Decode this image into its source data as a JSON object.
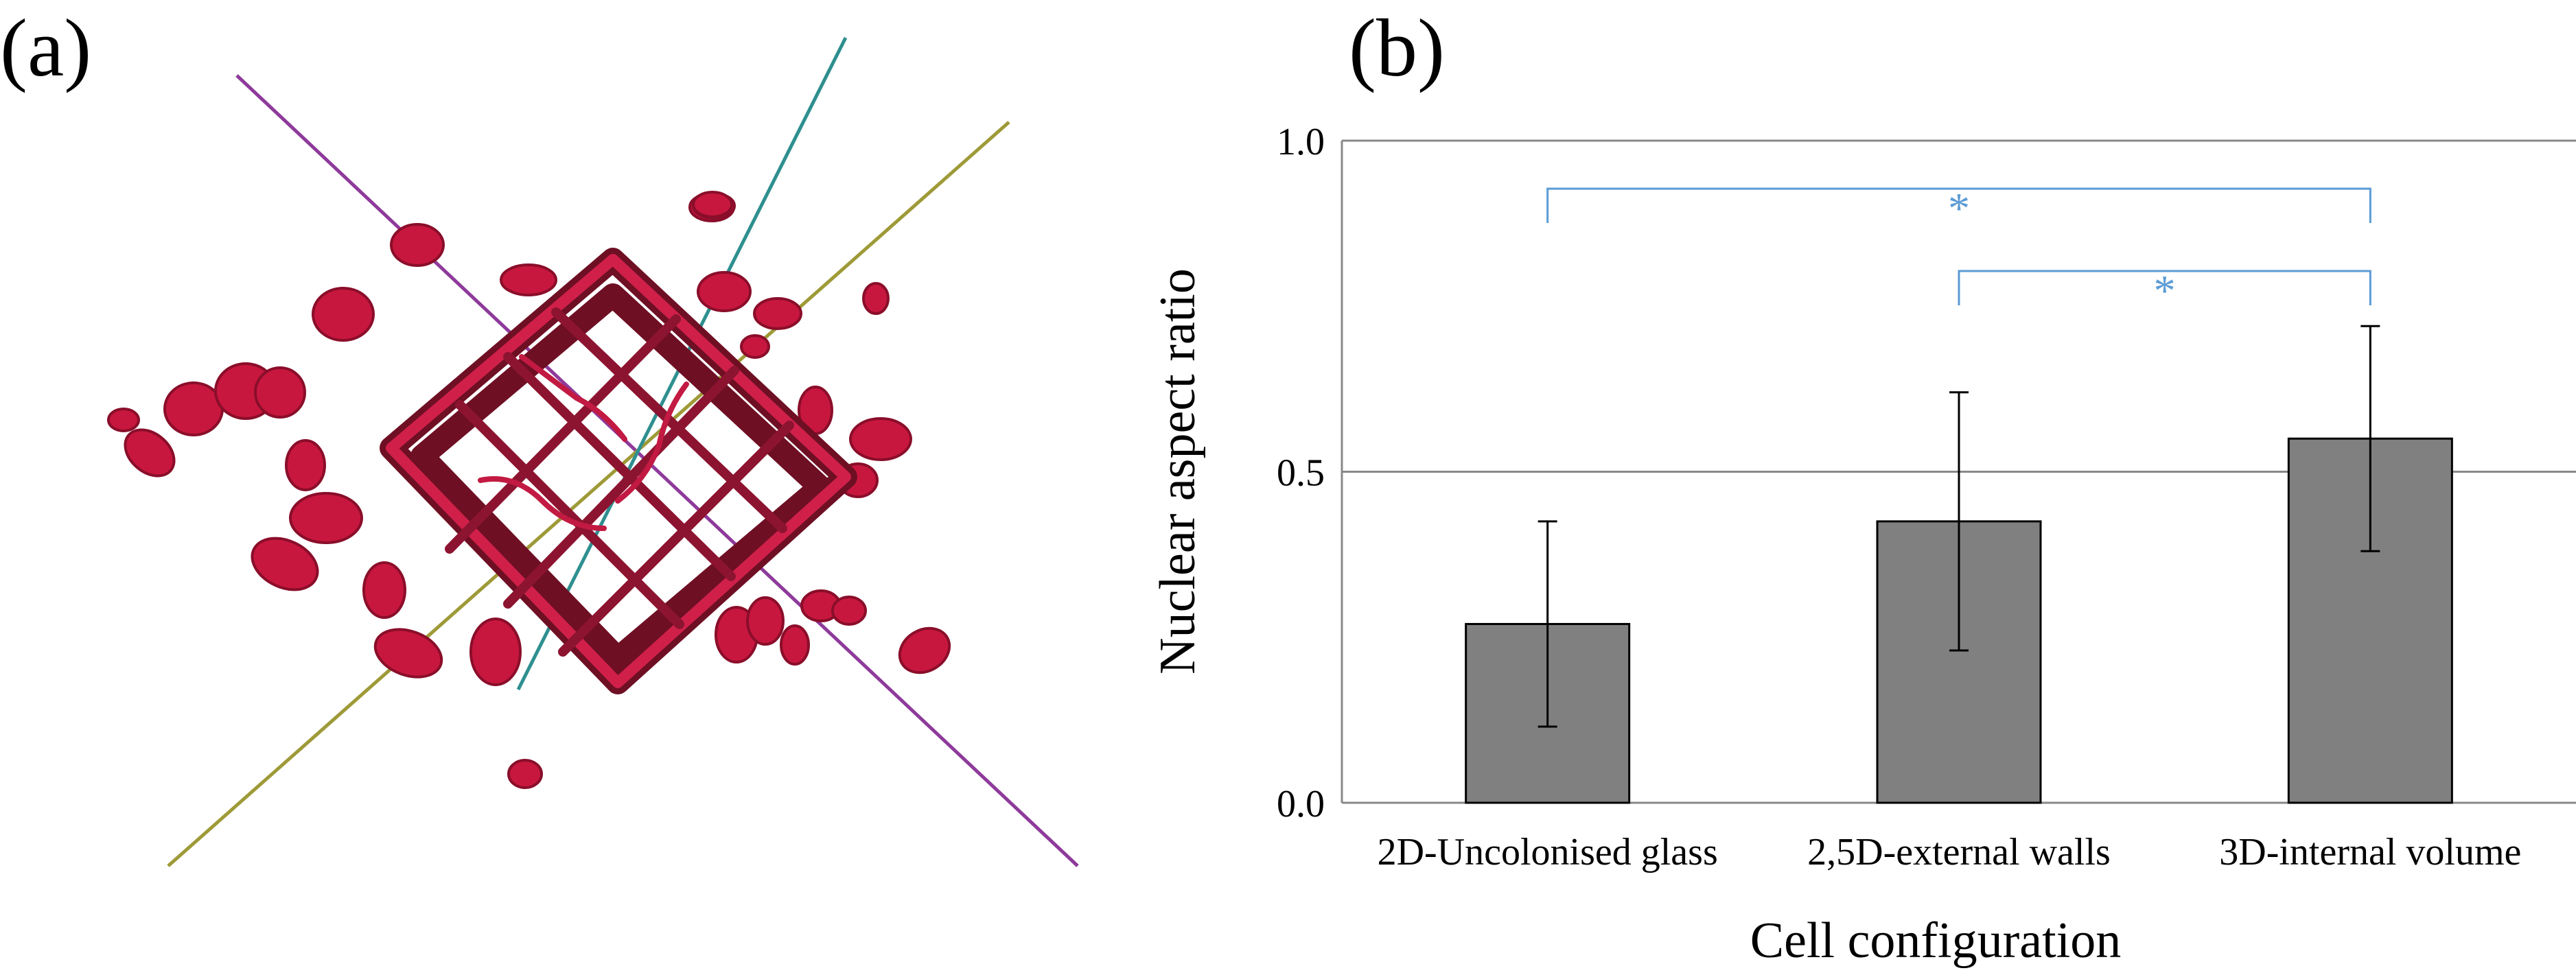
{
  "panel_a": {
    "label": "(a)"
  },
  "panel_b": {
    "label": "(b)"
  },
  "chart_data": {
    "type": "bar",
    "title": "",
    "xlabel": "Cell configuration",
    "ylabel": "Nuclear aspect ratio",
    "categories": [
      "2D-Uncolonised glass",
      "2,5D-external walls",
      "3D-internal volume"
    ],
    "values": [
      0.27,
      0.425,
      0.55
    ],
    "error": [
      0.155,
      0.195,
      0.17
    ],
    "ylim": [
      0,
      1
    ],
    "yticks": [
      0.0,
      0.5,
      1.0
    ],
    "ytick_labels": [
      "0.0",
      "0.5",
      "1.0"
    ],
    "grid": true,
    "bar_color": "#808080",
    "significance": [
      {
        "from": 0,
        "to": 2,
        "label": "*",
        "color": "#5b9bd5"
      },
      {
        "from": 1,
        "to": 2,
        "label": "*",
        "color": "#5b9bd5"
      }
    ]
  }
}
